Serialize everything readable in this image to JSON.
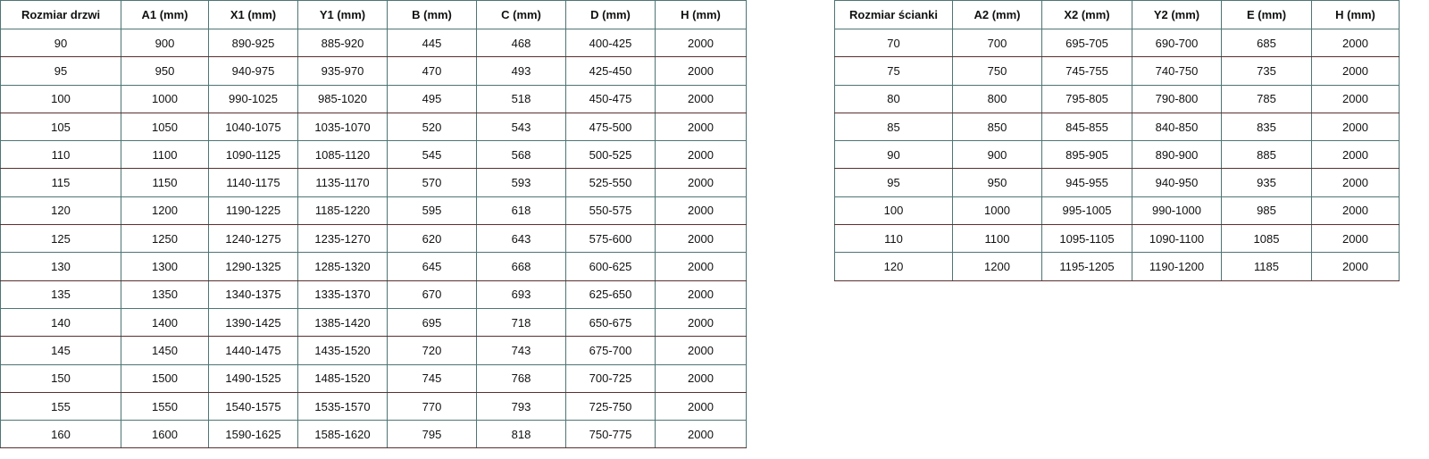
{
  "door_table": {
    "headers": [
      "Rozmiar drzwi",
      "A1 (mm)",
      "X1 (mm)",
      "Y1 (mm)",
      "B (mm)",
      "C (mm)",
      "D (mm)",
      "H (mm)"
    ],
    "rows": [
      [
        "90",
        "900",
        "890-925",
        "885-920",
        "445",
        "468",
        "400-425",
        "2000"
      ],
      [
        "95",
        "950",
        "940-975",
        "935-970",
        "470",
        "493",
        "425-450",
        "2000"
      ],
      [
        "100",
        "1000",
        "990-1025",
        "985-1020",
        "495",
        "518",
        "450-475",
        "2000"
      ],
      [
        "105",
        "1050",
        "1040-1075",
        "1035-1070",
        "520",
        "543",
        "475-500",
        "2000"
      ],
      [
        "110",
        "1100",
        "1090-1125",
        "1085-1120",
        "545",
        "568",
        "500-525",
        "2000"
      ],
      [
        "115",
        "1150",
        "1140-1175",
        "1135-1170",
        "570",
        "593",
        "525-550",
        "2000"
      ],
      [
        "120",
        "1200",
        "1190-1225",
        "1185-1220",
        "595",
        "618",
        "550-575",
        "2000"
      ],
      [
        "125",
        "1250",
        "1240-1275",
        "1235-1270",
        "620",
        "643",
        "575-600",
        "2000"
      ],
      [
        "130",
        "1300",
        "1290-1325",
        "1285-1320",
        "645",
        "668",
        "600-625",
        "2000"
      ],
      [
        "135",
        "1350",
        "1340-1375",
        "1335-1370",
        "670",
        "693",
        "625-650",
        "2000"
      ],
      [
        "140",
        "1400",
        "1390-1425",
        "1385-1420",
        "695",
        "718",
        "650-675",
        "2000"
      ],
      [
        "145",
        "1450",
        "1440-1475",
        "1435-1520",
        "720",
        "743",
        "675-700",
        "2000"
      ],
      [
        "150",
        "1500",
        "1490-1525",
        "1485-1520",
        "745",
        "768",
        "700-725",
        "2000"
      ],
      [
        "155",
        "1550",
        "1540-1575",
        "1535-1570",
        "770",
        "793",
        "725-750",
        "2000"
      ],
      [
        "160",
        "1600",
        "1590-1625",
        "1585-1620",
        "795",
        "818",
        "750-775",
        "2000"
      ]
    ]
  },
  "wall_table": {
    "headers": [
      "Rozmiar ścianki",
      "A2 (mm)",
      "X2 (mm)",
      "Y2 (mm)",
      "E (mm)",
      "H (mm)"
    ],
    "rows": [
      [
        "70",
        "700",
        "695-705",
        "690-700",
        "685",
        "2000"
      ],
      [
        "75",
        "750",
        "745-755",
        "740-750",
        "735",
        "2000"
      ],
      [
        "80",
        "800",
        "795-805",
        "790-800",
        "785",
        "2000"
      ],
      [
        "85",
        "850",
        "845-855",
        "840-850",
        "835",
        "2000"
      ],
      [
        "90",
        "900",
        "895-905",
        "890-900",
        "885",
        "2000"
      ],
      [
        "95",
        "950",
        "945-955",
        "940-950",
        "935",
        "2000"
      ],
      [
        "100",
        "1000",
        "995-1005",
        "990-1000",
        "985",
        "2000"
      ],
      [
        "110",
        "1100",
        "1095-1105",
        "1090-1100",
        "1085",
        "2000"
      ],
      [
        "120",
        "1200",
        "1195-1205",
        "1190-1200",
        "1185",
        "2000"
      ]
    ]
  }
}
